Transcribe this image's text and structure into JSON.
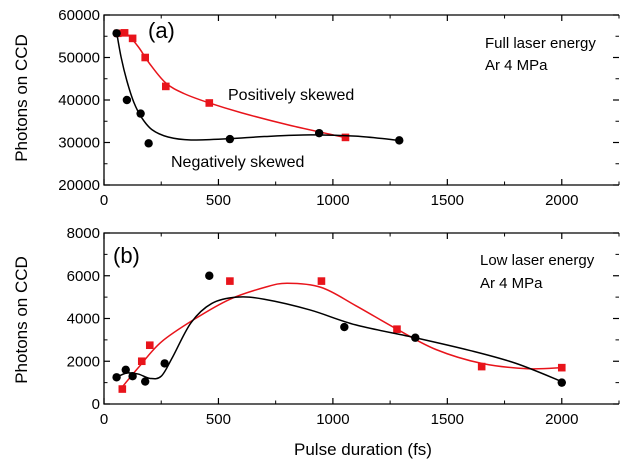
{
  "figure": {
    "x_axis_label": "Pulse duration (fs)"
  },
  "chart_data": [
    {
      "type": "scatter",
      "panel_label": "(a)",
      "ylabel": "Photons on CCD",
      "xlabel": "",
      "xlim": [
        0,
        2250
      ],
      "ylim": [
        20000,
        60000
      ],
      "x_ticks": [
        0,
        500,
        1000,
        1500,
        2000
      ],
      "y_ticks": [
        20000,
        30000,
        40000,
        50000,
        60000
      ],
      "x_tick_labels": [
        "0",
        "500",
        "1000",
        "1500",
        "2000"
      ],
      "y_tick_labels": [
        "20000",
        "30000",
        "40000",
        "50000",
        "60000"
      ],
      "grid": false,
      "legend": "none",
      "notes": [
        "Full laser energy",
        "Ar 4 MPa"
      ],
      "annotations": [
        {
          "text": "Positively skewed",
          "series": 0
        },
        {
          "text": "Negatively skewed",
          "series": 1
        }
      ],
      "series": [
        {
          "color": "#e8141b",
          "marker": "square",
          "points": [
            [
              60,
              55700
            ],
            [
              90,
              55800
            ],
            [
              125,
              54500
            ],
            [
              180,
              50000
            ],
            [
              270,
              43200
            ],
            [
              460,
              39300
            ],
            [
              1055,
              31200
            ]
          ],
          "fit": [
            [
              60,
              56000
            ],
            [
              100,
              55500
            ],
            [
              150,
              52500
            ],
            [
              200,
              48500
            ],
            [
              270,
              44000
            ],
            [
              350,
              41500
            ],
            [
              460,
              39300
            ],
            [
              600,
              37000
            ],
            [
              800,
              34200
            ],
            [
              1000,
              31800
            ],
            [
              1055,
              31200
            ]
          ]
        },
        {
          "color": "#000000",
          "marker": "circle",
          "points": [
            [
              55,
              55700
            ],
            [
              100,
              40000
            ],
            [
              160,
              36800
            ],
            [
              195,
              29800
            ],
            [
              550,
              30800
            ],
            [
              940,
              32200
            ],
            [
              1290,
              30500
            ]
          ],
          "fit": [
            [
              55,
              56000
            ],
            [
              75,
              50000
            ],
            [
              100,
              44500
            ],
            [
              130,
              39500
            ],
            [
              165,
              35800
            ],
            [
              210,
              33000
            ],
            [
              280,
              31300
            ],
            [
              380,
              30600
            ],
            [
              550,
              30900
            ],
            [
              700,
              31400
            ],
            [
              900,
              31800
            ],
            [
              1100,
              31500
            ],
            [
              1290,
              30500
            ]
          ]
        }
      ]
    },
    {
      "type": "scatter",
      "panel_label": "(b)",
      "ylabel": "Photons on CCD",
      "xlabel": "Pulse duration (fs)",
      "xlim": [
        0,
        2250
      ],
      "ylim": [
        0,
        8000
      ],
      "x_ticks": [
        0,
        500,
        1000,
        1500,
        2000
      ],
      "y_ticks": [
        0,
        2000,
        4000,
        6000,
        8000
      ],
      "x_tick_labels": [
        "0",
        "500",
        "1000",
        "1500",
        "2000"
      ],
      "y_tick_labels": [
        "0",
        "2000",
        "4000",
        "6000",
        "8000"
      ],
      "grid": false,
      "legend": "none",
      "notes": [
        "Low laser energy",
        "Ar 4 MPa"
      ],
      "annotations": [],
      "series": [
        {
          "color": "#e8141b",
          "marker": "square",
          "points": [
            [
              80,
              700
            ],
            [
              165,
              2000
            ],
            [
              200,
              2750
            ],
            [
              550,
              5750
            ],
            [
              950,
              5750
            ],
            [
              1280,
              3500
            ],
            [
              1650,
              1750
            ],
            [
              2000,
              1700
            ]
          ],
          "fit": [
            [
              80,
              800
            ],
            [
              150,
              1700
            ],
            [
              250,
              2900
            ],
            [
              400,
              4000
            ],
            [
              550,
              4900
            ],
            [
              700,
              5450
            ],
            [
              800,
              5650
            ],
            [
              950,
              5450
            ],
            [
              1100,
              4600
            ],
            [
              1280,
              3500
            ],
            [
              1450,
              2550
            ],
            [
              1650,
              1900
            ],
            [
              1850,
              1650
            ],
            [
              2000,
              1700
            ]
          ]
        },
        {
          "color": "#000000",
          "marker": "circle",
          "points": [
            [
              55,
              1250
            ],
            [
              95,
              1600
            ],
            [
              125,
              1300
            ],
            [
              180,
              1050
            ],
            [
              265,
              1900
            ],
            [
              460,
              6000
            ],
            [
              1050,
              3600
            ],
            [
              1360,
              3100
            ],
            [
              2000,
              1000
            ]
          ],
          "fit": [
            [
              55,
              1250
            ],
            [
              100,
              1450
            ],
            [
              150,
              1400
            ],
            [
              200,
              1200
            ],
            [
              250,
              1300
            ],
            [
              300,
              2200
            ],
            [
              380,
              3800
            ],
            [
              470,
              4700
            ],
            [
              580,
              5000
            ],
            [
              700,
              4900
            ],
            [
              900,
              4400
            ],
            [
              1100,
              3700
            ],
            [
              1360,
              3100
            ],
            [
              1600,
              2500
            ],
            [
              1800,
              1900
            ],
            [
              2000,
              1050
            ]
          ]
        }
      ]
    }
  ]
}
